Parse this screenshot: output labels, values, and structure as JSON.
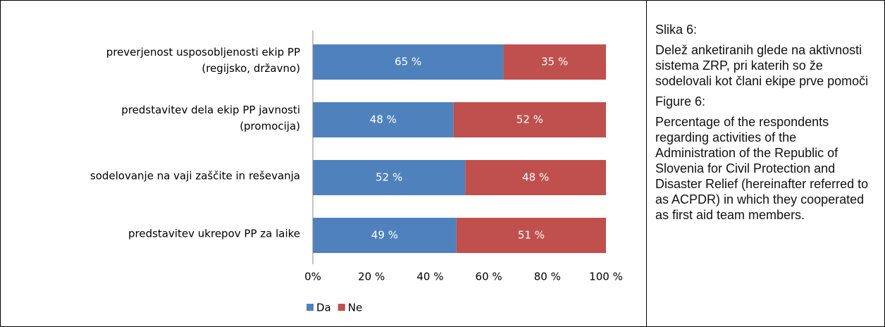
{
  "chart_data": {
    "type": "stacked-barh",
    "categories": [
      [
        "preverjenost usposobljenosti ekip PP",
        "(regijsko, državno)"
      ],
      [
        "predstavitev dela ekip PP javnosti",
        "(promocija)"
      ],
      [
        "sodelovanje na vaji zaščite in reševanja"
      ],
      [
        "predstavitev ukrepov PP za laike"
      ]
    ],
    "series": [
      {
        "name": "Da",
        "color": "#4f81bd",
        "values": [
          65,
          48,
          52,
          49
        ],
        "value_labels": [
          "65 %",
          "48 %",
          "52 %",
          "49 %"
        ]
      },
      {
        "name": "Ne",
        "color": "#c0504d",
        "values": [
          35,
          52,
          48,
          51
        ],
        "value_labels": [
          "35 %",
          "52 %",
          "48 %",
          "51 %"
        ]
      }
    ],
    "xlim": [
      0,
      100
    ],
    "xticks": [
      {
        "value": 0,
        "label": "0%"
      },
      {
        "value": 20,
        "label": "20 %"
      },
      {
        "value": 40,
        "label": "40 %"
      },
      {
        "value": 60,
        "label": "60 %"
      },
      {
        "value": 80,
        "label": "80 %"
      },
      {
        "value": 100,
        "label": "100 %"
      }
    ],
    "legend": "bottom-left"
  },
  "caption": {
    "label_sl": "Slika 6:",
    "text_sl": "Delež anketiranih glede na aktivnosti sistema ZRP, pri katerih so že sodelovali kot člani ekipe prve pomoči",
    "label_en": "Figure 6:",
    "text_en": "Percentage of the respondents regarding activities of the Administration of the Republic of Slovenia for Civil Protection and Disaster Relief (hereinafter referred to as ACPDR) in which they cooperated as first aid team members."
  }
}
